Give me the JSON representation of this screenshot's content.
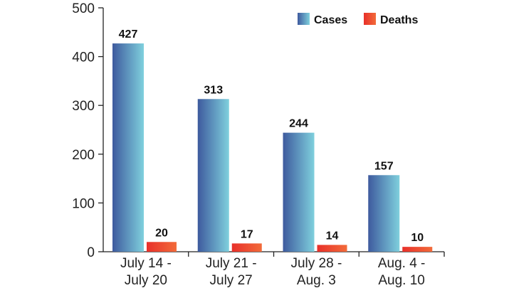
{
  "chart_data": {
    "type": "bar",
    "categories": [
      [
        "July 14 -",
        "July 20"
      ],
      [
        "July 21 -",
        "July 27"
      ],
      [
        "July 28 -",
        "Aug. 3"
      ],
      [
        "Aug. 4 -",
        "Aug. 10"
      ]
    ],
    "series": [
      {
        "name": "Cases",
        "values": [
          427,
          313,
          244,
          157
        ],
        "color_dark": "#3e5a9e",
        "color_light": "#7fd0dd"
      },
      {
        "name": "Deaths",
        "values": [
          20,
          17,
          14,
          10
        ],
        "color_dark": "#e8302a",
        "color_light": "#f26b3a"
      }
    ],
    "ylim": [
      0,
      500
    ],
    "yticks": [
      0,
      100,
      200,
      300,
      400,
      500
    ],
    "title": "",
    "xlabel": "",
    "ylabel": "",
    "grid": false,
    "legend_position": "top-right",
    "data_labels": true
  }
}
